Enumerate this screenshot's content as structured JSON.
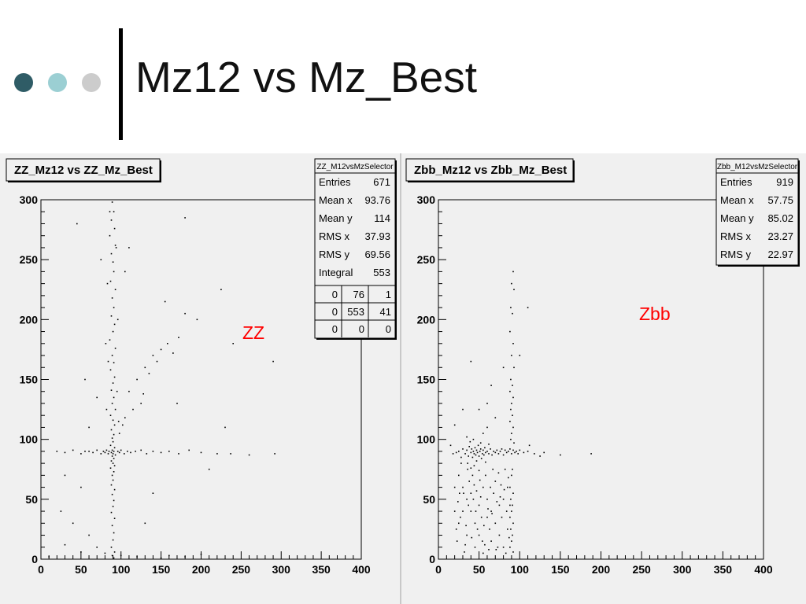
{
  "slide": {
    "title": "Mz12 vs Mz_Best",
    "bullet_colors": [
      "#2f5c66",
      "#9bcfd3",
      "#cccccc"
    ]
  },
  "chart_data": [
    {
      "type": "scatter",
      "title": "ZZ_Mz12 vs ZZ_Mz_Best",
      "annotation": "ZZ",
      "annotation_color": "#ff0000",
      "xlim": [
        0,
        400
      ],
      "ylim": [
        0,
        300
      ],
      "xticks": [
        "0",
        "50",
        "100",
        "150",
        "200",
        "250",
        "300",
        "350",
        "400"
      ],
      "yticks": [
        "0",
        "50",
        "100",
        "150",
        "200",
        "250",
        "300"
      ],
      "stats": {
        "name": "ZZ_M12vsMzSelector",
        "rows": [
          [
            "Entries",
            "671"
          ],
          [
            "Mean x",
            "93.76"
          ],
          [
            "Mean y",
            "114"
          ],
          [
            "RMS x",
            "37.93"
          ],
          [
            "RMS y",
            "69.56"
          ],
          [
            "Integral",
            "553"
          ]
        ],
        "grid": [
          [
            "0",
            "76",
            "1"
          ],
          [
            "0",
            "553",
            "41"
          ],
          [
            "0",
            "0",
            "0"
          ]
        ]
      },
      "points": [
        [
          89,
          298
        ],
        [
          91,
          290
        ],
        [
          88,
          283
        ],
        [
          92,
          276
        ],
        [
          86,
          270
        ],
        [
          93,
          262
        ],
        [
          88,
          255
        ],
        [
          90,
          248
        ],
        [
          91,
          240
        ],
        [
          87,
          232
        ],
        [
          93,
          225
        ],
        [
          89,
          218
        ],
        [
          91,
          210
        ],
        [
          88,
          203
        ],
        [
          92,
          196
        ],
        [
          90,
          190
        ],
        [
          86,
          183
        ],
        [
          93,
          176
        ],
        [
          89,
          170
        ],
        [
          91,
          164
        ],
        [
          87,
          158
        ],
        [
          92,
          152
        ],
        [
          90,
          147
        ],
        [
          88,
          141
        ],
        [
          91,
          135
        ],
        [
          89,
          130
        ],
        [
          93,
          125
        ],
        [
          87,
          120
        ],
        [
          90,
          116
        ],
        [
          92,
          112
        ],
        [
          88,
          108
        ],
        [
          91,
          104
        ],
        [
          89,
          101
        ],
        [
          90,
          98
        ],
        [
          87,
          95
        ],
        [
          92,
          93
        ],
        [
          89,
          91
        ],
        [
          91,
          90
        ],
        [
          88,
          89
        ],
        [
          90,
          88
        ],
        [
          85,
          90
        ],
        [
          93,
          87
        ],
        [
          89,
          86
        ],
        [
          91,
          84
        ],
        [
          88,
          82
        ],
        [
          90,
          80
        ],
        [
          92,
          78
        ],
        [
          87,
          76
        ],
        [
          91,
          73
        ],
        [
          89,
          70
        ],
        [
          90,
          66
        ],
        [
          88,
          62
        ],
        [
          92,
          58
        ],
        [
          89,
          54
        ],
        [
          91,
          49
        ],
        [
          90,
          44
        ],
        [
          88,
          39
        ],
        [
          92,
          34
        ],
        [
          89,
          28
        ],
        [
          91,
          22
        ],
        [
          90,
          16
        ],
        [
          88,
          10
        ],
        [
          92,
          6
        ],
        [
          89,
          3
        ],
        [
          91,
          1
        ],
        [
          95,
          140
        ],
        [
          84,
          165
        ],
        [
          96,
          200
        ],
        [
          83,
          230
        ],
        [
          97,
          115
        ],
        [
          82,
          125
        ],
        [
          98,
          105
        ],
        [
          81,
          180
        ],
        [
          94,
          260
        ],
        [
          86,
          290
        ],
        [
          20,
          90
        ],
        [
          30,
          89
        ],
        [
          40,
          91
        ],
        [
          50,
          88
        ],
        [
          55,
          90
        ],
        [
          60,
          90
        ],
        [
          65,
          89
        ],
        [
          70,
          91
        ],
        [
          75,
          88
        ],
        [
          78,
          90
        ],
        [
          80,
          89
        ],
        [
          82,
          91
        ],
        [
          84,
          88
        ],
        [
          96,
          90
        ],
        [
          98,
          89
        ],
        [
          100,
          91
        ],
        [
          104,
          88
        ],
        [
          108,
          90
        ],
        [
          112,
          89
        ],
        [
          118,
          90
        ],
        [
          125,
          91
        ],
        [
          132,
          88
        ],
        [
          140,
          90
        ],
        [
          150,
          89
        ],
        [
          160,
          90
        ],
        [
          172,
          88
        ],
        [
          185,
          91
        ],
        [
          200,
          89
        ],
        [
          220,
          88
        ],
        [
          237,
          88
        ],
        [
          260,
          87
        ],
        [
          292,
          88
        ],
        [
          110,
          140
        ],
        [
          120,
          150
        ],
        [
          130,
          160
        ],
        [
          140,
          170
        ],
        [
          150,
          175
        ],
        [
          158,
          180
        ],
        [
          165,
          172
        ],
        [
          172,
          185
        ],
        [
          135,
          155
        ],
        [
          125,
          130
        ],
        [
          115,
          125
        ],
        [
          105,
          118
        ],
        [
          128,
          138
        ],
        [
          145,
          165
        ],
        [
          102,
          112
        ],
        [
          25,
          40
        ],
        [
          40,
          30
        ],
        [
          50,
          60
        ],
        [
          60,
          20
        ],
        [
          70,
          10
        ],
        [
          80,
          5
        ],
        [
          100,
          3
        ],
        [
          120,
          2
        ],
        [
          150,
          1
        ],
        [
          180,
          2
        ],
        [
          200,
          4
        ],
        [
          30,
          12
        ],
        [
          50,
          6
        ],
        [
          10,
          2
        ],
        [
          160,
          3
        ],
        [
          225,
          225
        ],
        [
          180,
          205
        ],
        [
          195,
          200
        ],
        [
          240,
          180
        ],
        [
          290,
          165
        ],
        [
          45,
          280
        ],
        [
          180,
          285
        ],
        [
          170,
          130
        ],
        [
          230,
          110
        ],
        [
          210,
          75
        ],
        [
          140,
          55
        ],
        [
          60,
          110
        ],
        [
          70,
          135
        ],
        [
          30,
          70
        ],
        [
          55,
          150
        ],
        [
          105,
          240
        ],
        [
          110,
          260
        ],
        [
          155,
          215
        ],
        [
          130,
          30
        ],
        [
          75,
          250
        ]
      ]
    },
    {
      "type": "scatter",
      "title": "Zbb_Mz12 vs Zbb_Mz_Best",
      "annotation": "Zbb",
      "annotation_color": "#ff0000",
      "xlim": [
        0,
        400
      ],
      "ylim": [
        0,
        300
      ],
      "xticks": [
        "0",
        "50",
        "100",
        "150",
        "200",
        "250",
        "300",
        "350",
        "400"
      ],
      "yticks": [
        "0",
        "50",
        "100",
        "150",
        "200",
        "250",
        "300"
      ],
      "stats": {
        "name": "Zbb_M12vsMzSelector",
        "rows": [
          [
            "Entries",
            "919"
          ],
          [
            "Mean x",
            "57.75"
          ],
          [
            "Mean y",
            "85.02"
          ],
          [
            "RMS x",
            "23.27"
          ],
          [
            "RMS y",
            "22.97"
          ]
        ],
        "grid": []
      },
      "points": [
        [
          30,
          92
        ],
        [
          33,
          88
        ],
        [
          35,
          91
        ],
        [
          37,
          86
        ],
        [
          38,
          94
        ],
        [
          40,
          89
        ],
        [
          41,
          92
        ],
        [
          42,
          85
        ],
        [
          43,
          90
        ],
        [
          44,
          88
        ],
        [
          45,
          93
        ],
        [
          46,
          87
        ],
        [
          47,
          91
        ],
        [
          48,
          89
        ],
        [
          49,
          95
        ],
        [
          50,
          86
        ],
        [
          51,
          90
        ],
        [
          52,
          92
        ],
        [
          53,
          84
        ],
        [
          54,
          88
        ],
        [
          55,
          91
        ],
        [
          56,
          87
        ],
        [
          57,
          93
        ],
        [
          58,
          89
        ],
        [
          60,
          90
        ],
        [
          62,
          88
        ],
        [
          64,
          92
        ],
        [
          66,
          87
        ],
        [
          68,
          90
        ],
        [
          70,
          89
        ],
        [
          72,
          91
        ],
        [
          74,
          88
        ],
        [
          76,
          90
        ],
        [
          78,
          92
        ],
        [
          80,
          87
        ],
        [
          82,
          91
        ],
        [
          84,
          89
        ],
        [
          86,
          90
        ],
        [
          88,
          92
        ],
        [
          90,
          88
        ],
        [
          92,
          91
        ],
        [
          94,
          89
        ],
        [
          96,
          90
        ],
        [
          98,
          88
        ],
        [
          100,
          91
        ],
        [
          105,
          89
        ],
        [
          110,
          90
        ],
        [
          118,
          88
        ],
        [
          130,
          89
        ],
        [
          150,
          87
        ],
        [
          188,
          88
        ],
        [
          25,
          90
        ],
        [
          22,
          89
        ],
        [
          28,
          85
        ],
        [
          36,
          80
        ],
        [
          39,
          98
        ],
        [
          43,
          100
        ],
        [
          47,
          82
        ],
        [
          52,
          97
        ],
        [
          58,
          81
        ],
        [
          62,
          96
        ],
        [
          44,
          78
        ],
        [
          40,
          76
        ],
        [
          50,
          74
        ],
        [
          55,
          105
        ],
        [
          35,
          102
        ],
        [
          60,
          110
        ],
        [
          92,
          240
        ],
        [
          90,
          230
        ],
        [
          93,
          225
        ],
        [
          89,
          210
        ],
        [
          91,
          205
        ],
        [
          88,
          190
        ],
        [
          92,
          180
        ],
        [
          90,
          170
        ],
        [
          93,
          160
        ],
        [
          89,
          150
        ],
        [
          91,
          145
        ],
        [
          88,
          140
        ],
        [
          92,
          135
        ],
        [
          90,
          130
        ],
        [
          89,
          125
        ],
        [
          91,
          120
        ],
        [
          88,
          115
        ],
        [
          92,
          110
        ],
        [
          90,
          105
        ],
        [
          89,
          100
        ],
        [
          93,
          97
        ],
        [
          91,
          75
        ],
        [
          90,
          70
        ],
        [
          88,
          60
        ],
        [
          92,
          55
        ],
        [
          89,
          50
        ],
        [
          91,
          45
        ],
        [
          90,
          40
        ],
        [
          88,
          35
        ],
        [
          92,
          30
        ],
        [
          89,
          25
        ],
        [
          91,
          20
        ],
        [
          90,
          15
        ],
        [
          88,
          10
        ],
        [
          92,
          6
        ],
        [
          25,
          70
        ],
        [
          30,
          60
        ],
        [
          35,
          50
        ],
        [
          40,
          40
        ],
        [
          45,
          30
        ],
        [
          50,
          20
        ],
        [
          55,
          60
        ],
        [
          60,
          50
        ],
        [
          65,
          40
        ],
        [
          70,
          30
        ],
        [
          75,
          20
        ],
        [
          80,
          10
        ],
        [
          85,
          60
        ],
        [
          30,
          40
        ],
        [
          40,
          55
        ],
        [
          50,
          45
        ],
        [
          60,
          35
        ],
        [
          70,
          65
        ],
        [
          80,
          50
        ],
        [
          20,
          60
        ],
        [
          25,
          30
        ],
        [
          35,
          20
        ],
        [
          45,
          10
        ],
        [
          55,
          5
        ],
        [
          65,
          15
        ],
        [
          75,
          45
        ],
        [
          85,
          25
        ],
        [
          28,
          80
        ],
        [
          38,
          65
        ],
        [
          48,
          25
        ],
        [
          58,
          70
        ],
        [
          68,
          55
        ],
        [
          78,
          35
        ],
        [
          88,
          45
        ],
        [
          20,
          40
        ],
        [
          23,
          15
        ],
        [
          33,
          12
        ],
        [
          43,
          50
        ],
        [
          53,
          35
        ],
        [
          63,
          25
        ],
        [
          73,
          10
        ],
        [
          83,
          5
        ],
        [
          24,
          48
        ],
        [
          34,
          28
        ],
        [
          44,
          62
        ],
        [
          54,
          15
        ],
        [
          64,
          60
        ],
        [
          74,
          72
        ],
        [
          84,
          40
        ],
        [
          31,
          55
        ],
        [
          41,
          18
        ],
        [
          51,
          66
        ],
        [
          61,
          42
        ],
        [
          71,
          8
        ],
        [
          81,
          58
        ],
        [
          27,
          35
        ],
        [
          37,
          45
        ],
        [
          47,
          57
        ],
        [
          57,
          12
        ],
        [
          67,
          75
        ],
        [
          77,
          62
        ],
        [
          87,
          18
        ],
        [
          32,
          6
        ],
        [
          42,
          70
        ],
        [
          52,
          52
        ],
        [
          62,
          8
        ],
        [
          72,
          48
        ],
        [
          82,
          75
        ],
        [
          22,
          25
        ],
        [
          46,
          40
        ],
        [
          56,
          28
        ],
        [
          66,
          38
        ],
        [
          76,
          52
        ],
        [
          86,
          68
        ],
        [
          36,
          75
        ],
        [
          26,
          55
        ],
        [
          20,
          112
        ],
        [
          50,
          125
        ],
        [
          60,
          130
        ],
        [
          70,
          118
        ],
        [
          80,
          160
        ],
        [
          40,
          165
        ],
        [
          110,
          210
        ],
        [
          100,
          170
        ],
        [
          30,
          125
        ],
        [
          65,
          145
        ],
        [
          15,
          95
        ],
        [
          18,
          88
        ],
        [
          112,
          95
        ],
        [
          125,
          86
        ]
      ]
    }
  ]
}
